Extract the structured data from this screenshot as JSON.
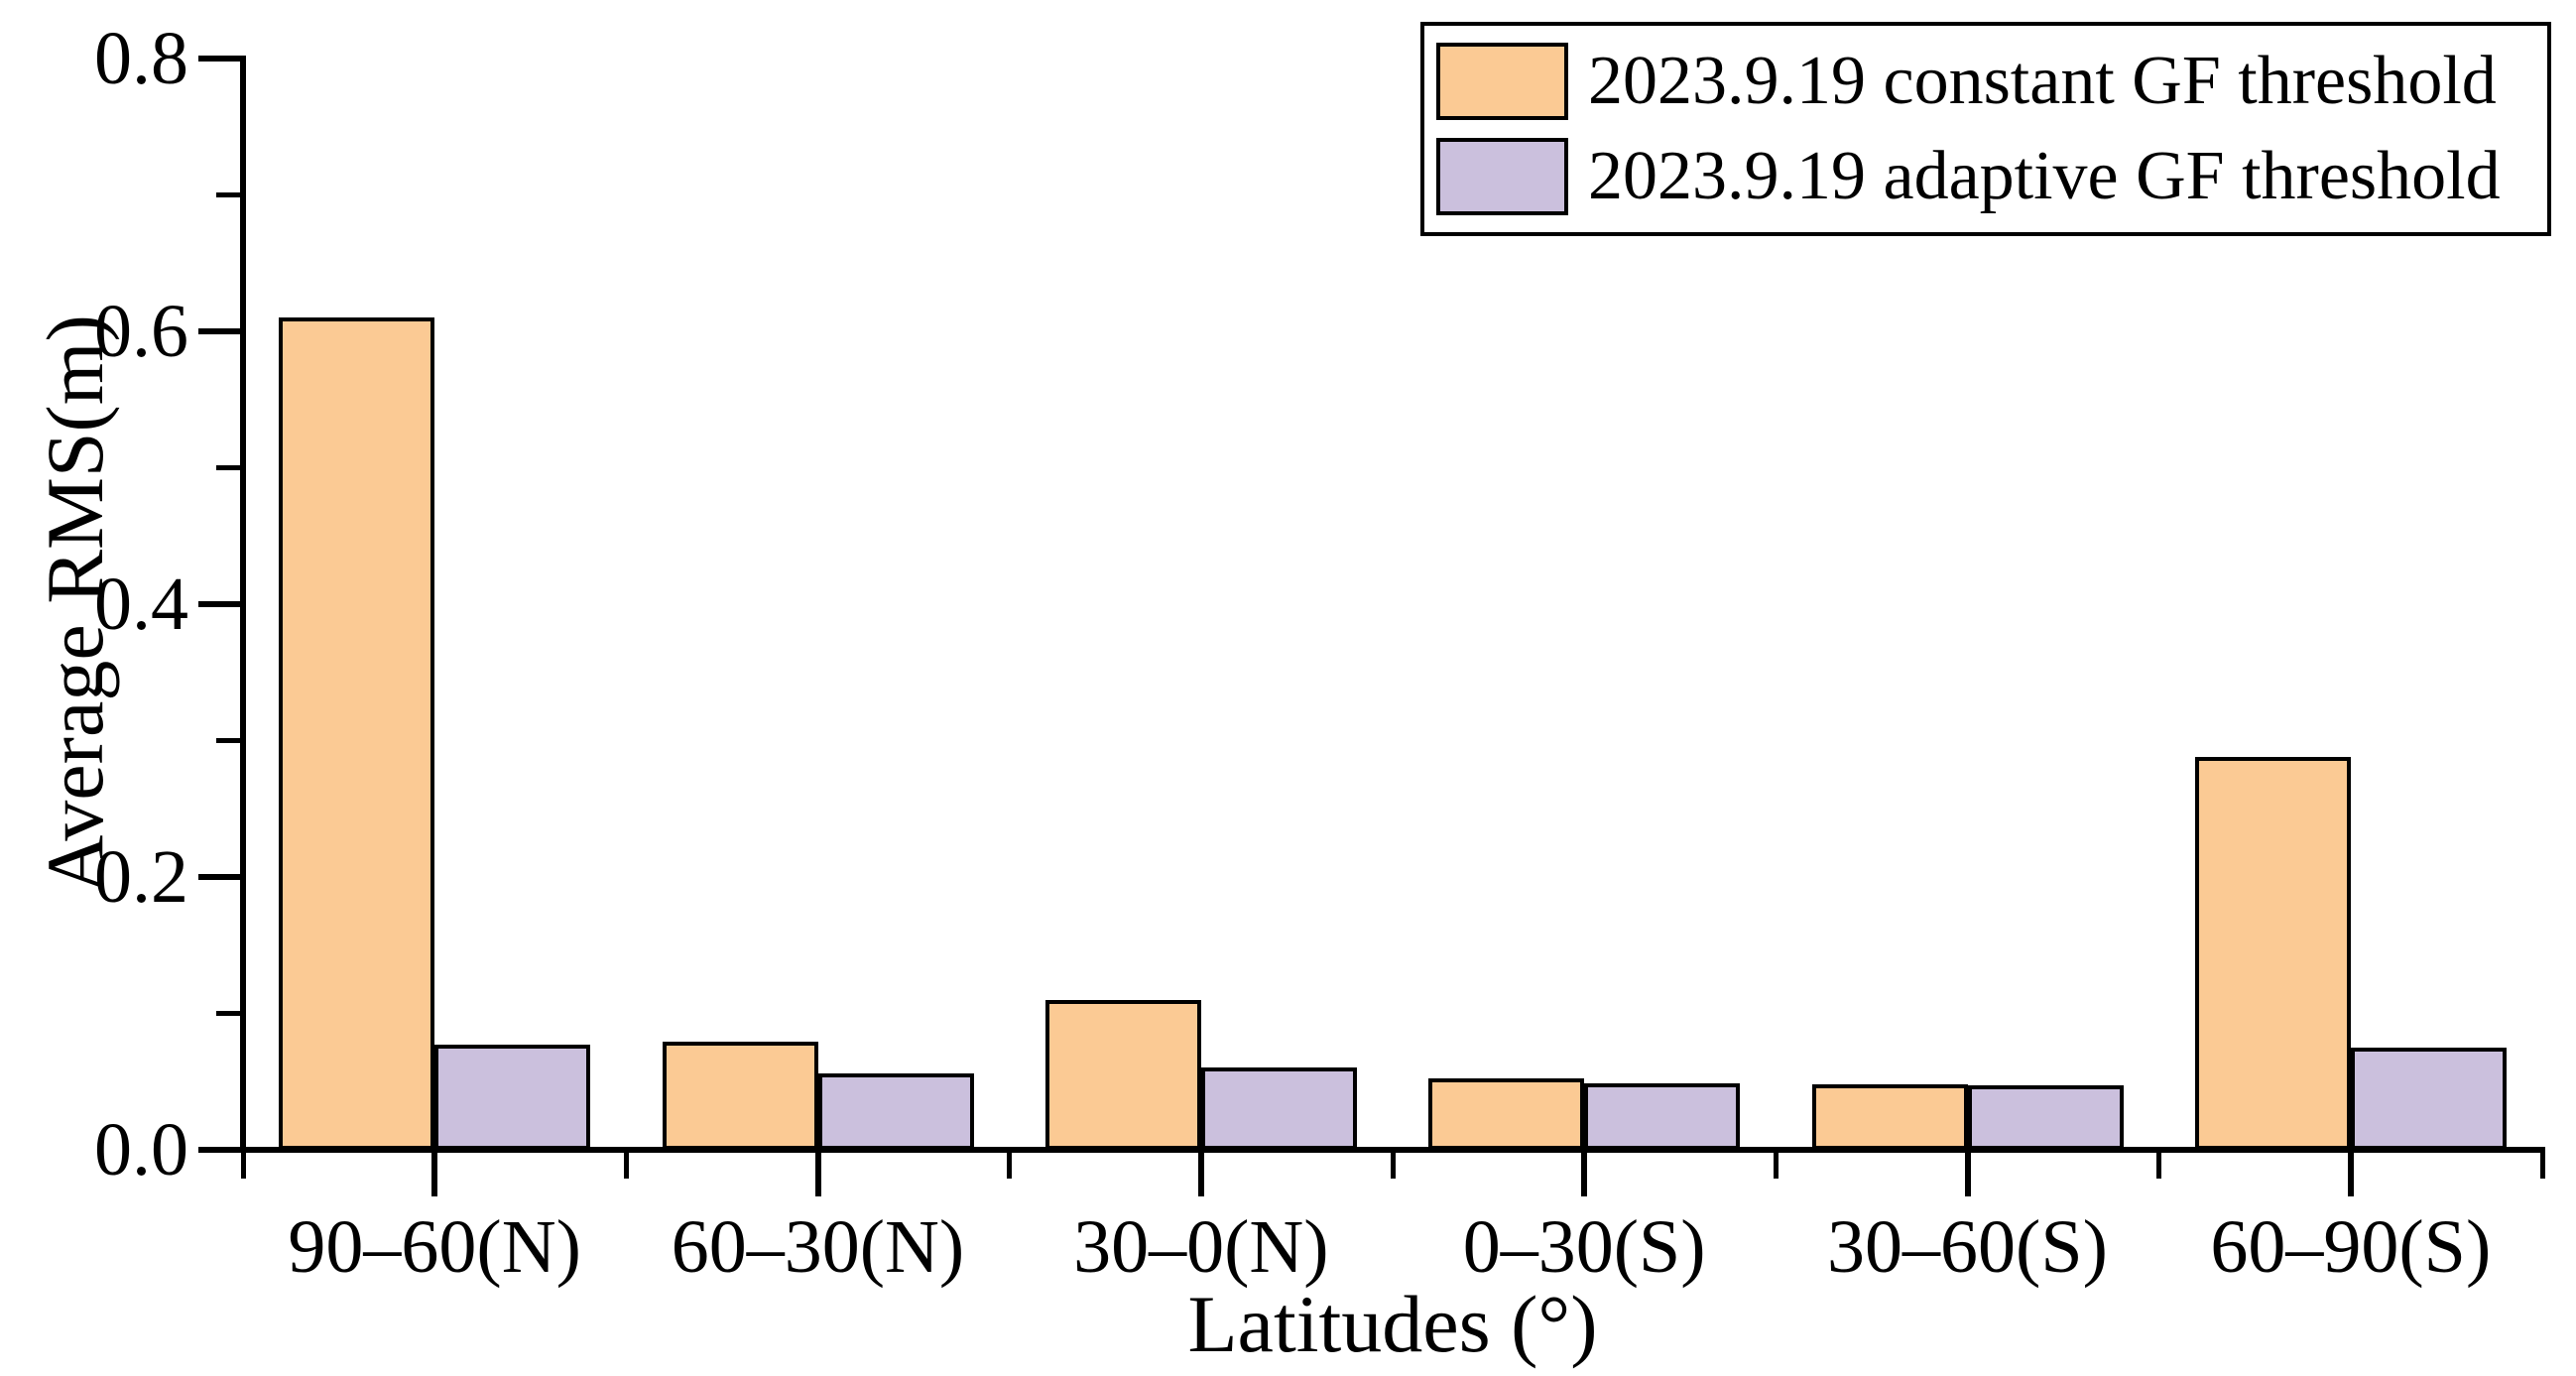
{
  "chart_data": {
    "type": "bar",
    "title": "",
    "categories": [
      "90–60(N)",
      "60–30(N)",
      "30–0(N)",
      "0–30(S)",
      "30–60(S)",
      "60–90(S)"
    ],
    "series": [
      {
        "name": "2023.9.19 constant GF threshold",
        "color": "#FBCA94",
        "values": [
          0.61,
          0.079,
          0.11,
          0.052,
          0.048,
          0.288
        ]
      },
      {
        "name": "2023.9.19 adaptive GF threshold",
        "color": "#CBC0DD",
        "values": [
          0.077,
          0.056,
          0.06,
          0.049,
          0.047,
          0.075
        ]
      }
    ],
    "xlabel": "Latitudes (°)",
    "ylabel": "Average RMS(m)",
    "ylim": [
      0.0,
      0.8
    ],
    "y_major_ticks": [
      "0.0",
      "0.2",
      "0.4",
      "0.6",
      "0.8"
    ],
    "y_minor_step": 0.1,
    "grid": false,
    "legend_position": "top-right",
    "bar_border_color": "#000000",
    "axis_color": "#000000"
  }
}
